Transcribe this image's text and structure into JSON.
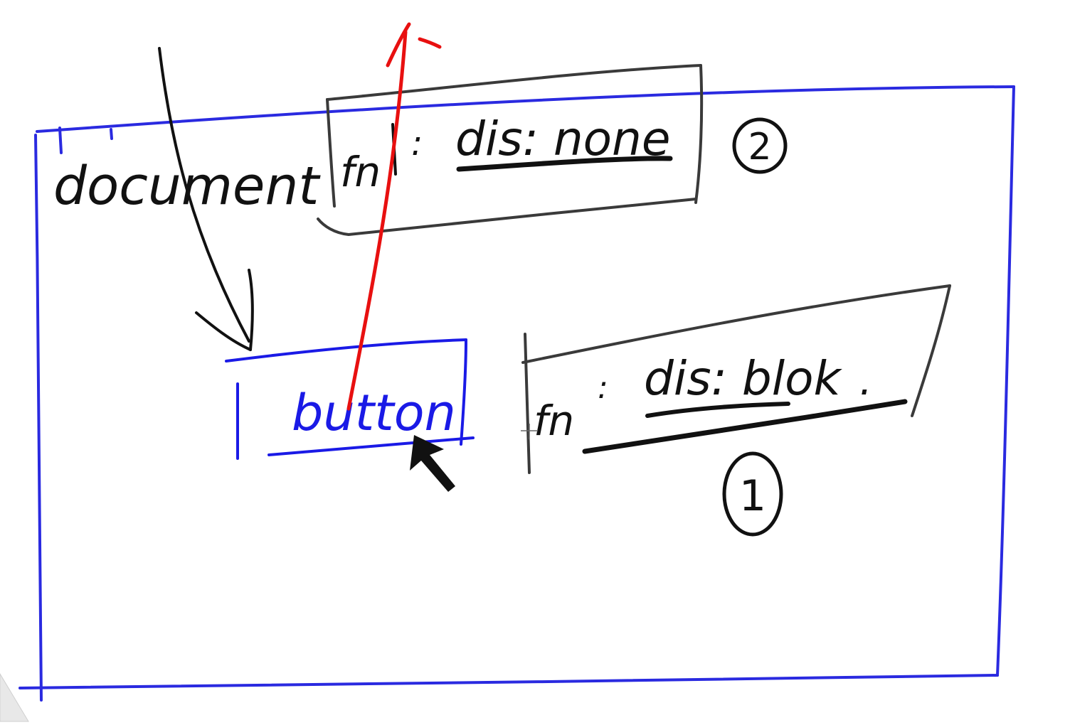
{
  "labels": {
    "document": "document",
    "button": "button",
    "handler_top_fn": "fn",
    "handler_top_sep": ":",
    "handler_top_value": "dis: none",
    "handler_top_order": "2",
    "handler_bottom_fn": "fn",
    "handler_bottom_sep": ":",
    "handler_bottom_value": "dis: blok",
    "handler_bottom_dot": ".",
    "handler_bottom_order": "1"
  },
  "colors": {
    "document_box": "#2a2ae0",
    "button_box": "#1a1ae6",
    "handler_box": "#3a3a3a",
    "ink": "#111111",
    "bubble_arrow": "#e81010"
  },
  "icons": {
    "cursor": "mouse-pointer-icon"
  }
}
